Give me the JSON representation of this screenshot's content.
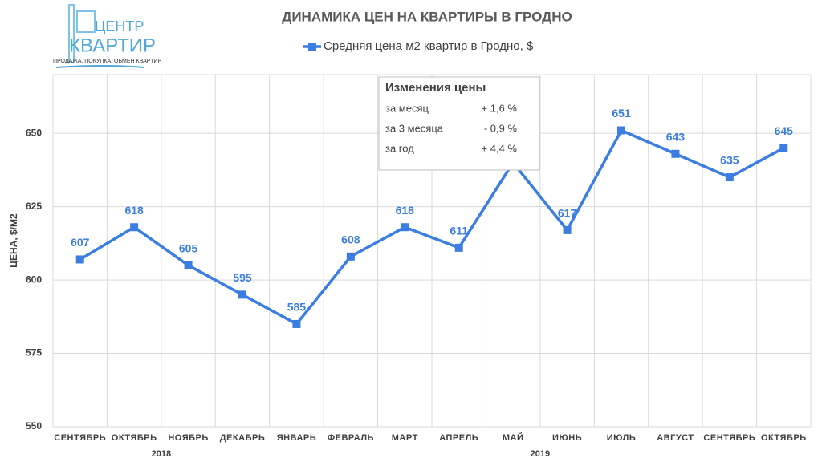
{
  "chart_data": {
    "type": "line",
    "title": "ДИНАМИКА ЦЕН НА КВАРТИРЫ В ГРОДНО",
    "logo": {
      "line1": "ЦЕНТР",
      "line2": "КВАРТИР",
      "tagline": "ПРОДАЖА, ПОКУПКА, ОБМЕН КВАРТИР"
    },
    "ylabel": "ЦЕНА, $/М2",
    "categories": [
      "СЕНТЯБРЬ",
      "ОКТЯБРЬ",
      "НОЯБРЬ",
      "ДЕКАБРЬ",
      "ЯНВАРЬ",
      "ФЕВРАЛЬ",
      "МАРТ",
      "АПРЕЛЬ",
      "МАЙ",
      "ИЮНЬ",
      "ИЮЛЬ",
      "АВГУСТ",
      "СЕНТЯБРЬ",
      "ОКТЯБРЬ"
    ],
    "category_groups": [
      {
        "label": "2018",
        "start": 0,
        "end": 3
      },
      {
        "label": "2019",
        "start": 4,
        "end": 13
      }
    ],
    "series": [
      {
        "name": "Средняя цена м2 квартир в Гродно, $",
        "color": "#3b7de0",
        "values": [
          607,
          618,
          605,
          595,
          585,
          608,
          618,
          611,
          640,
          617,
          651,
          643,
          635,
          645
        ]
      }
    ],
    "ylim": [
      550,
      670
    ],
    "yticks": [
      550,
      575,
      600,
      625,
      650
    ],
    "grid": true,
    "legend": "top",
    "annotation": {
      "title": "Изменения цены",
      "rows": [
        [
          "за месяц",
          "+ 1,6 %"
        ],
        [
          "за 3 месяца",
          "- 0,9 %"
        ],
        [
          "за год",
          "+ 4,4 %"
        ]
      ]
    }
  }
}
